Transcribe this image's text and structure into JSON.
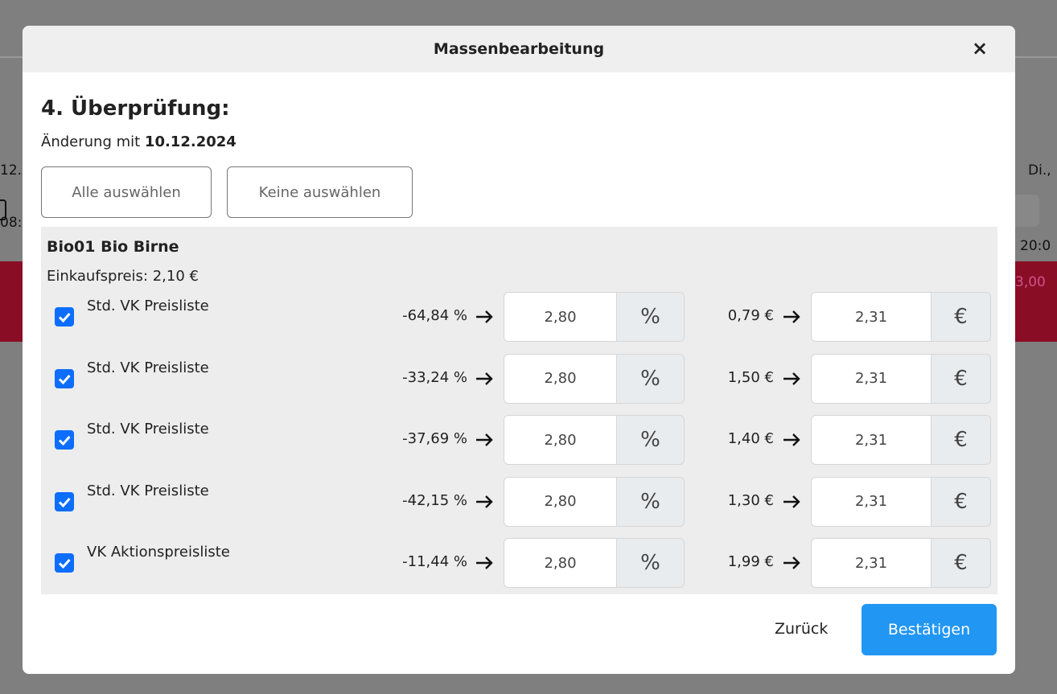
{
  "background": {
    "fragments": [
      "12.",
      "08:",
      "Di.,",
      "20:0",
      "3,00"
    ]
  },
  "modal": {
    "title": "Massenbearbeitung",
    "close": "×",
    "heading": "4. Überprüfung:",
    "subtitle": {
      "text": "Änderung mit",
      "date": "10.12.2024"
    },
    "buttons": [
      "Alle auswählen",
      "Keine auswählen"
    ],
    "product": {
      "name": "Bio01 Bio Birne",
      "purchase_price": "Einkaufspreis: 2,10 €",
      "rows": [
        {
          "label": "Std. VK Preisliste",
          "percent_change": "-64,84 %",
          "percent_input": "2,80",
          "percent_unit": "%",
          "euro_change": "0,79 €",
          "euro_input": "2,31",
          "euro_unit": "€"
        },
        {
          "label": "Std. VK Preisliste",
          "percent_change": "-33,24 %",
          "percent_input": "2,80",
          "percent_unit": "%",
          "euro_change": "1,50 €",
          "euro_input": "2,31",
          "euro_unit": "€"
        },
        {
          "label": "Std. VK Preisliste",
          "percent_change": "-37,69 %",
          "percent_input": "2,80",
          "percent_unit": "%",
          "euro_change": "1,40 €",
          "euro_input": "2,31",
          "euro_unit": "€"
        },
        {
          "label": "Std. VK Preisliste",
          "percent_change": "-42,15 %",
          "percent_input": "2,80",
          "percent_unit": "%",
          "euro_change": "1,30 €",
          "euro_input": "2,31",
          "euro_unit": "€"
        },
        {
          "label": "VK Aktionspreisliste",
          "percent_change": "-11,44 %",
          "percent_input": "2,80",
          "percent_unit": "%",
          "euro_change": "1,99 €",
          "euro_input": "2,31",
          "euro_unit": "€"
        }
      ]
    },
    "footer": {
      "back": "Zurück",
      "confirm": "Bestätigen"
    }
  }
}
